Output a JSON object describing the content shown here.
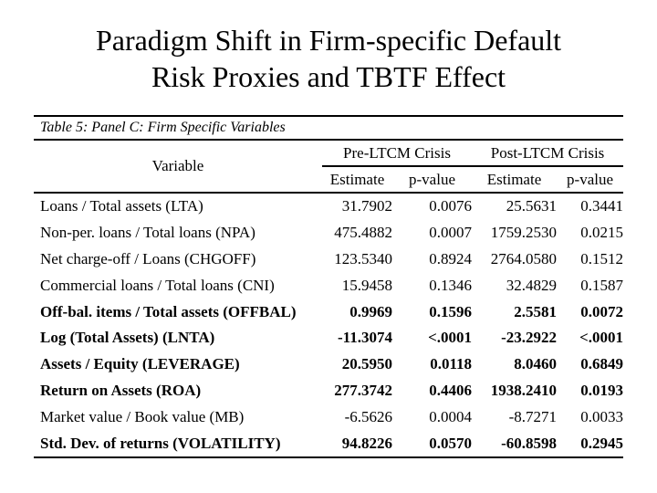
{
  "slide": {
    "title_line1": "Paradigm Shift in Firm-specific Default",
    "title_line2": "Risk Proxies and TBTF Effect",
    "background_color": "#ffffff",
    "text_color": "#000000"
  },
  "table": {
    "caption": "Table 5: Panel C: Firm Specific Variables",
    "columns": {
      "variable": "Variable",
      "group_pre": "Pre-LTCM Crisis",
      "group_post": "Post-LTCM Crisis"
    },
    "subheaders": [
      "Estimate",
      "p-value",
      "Estimate",
      "p-value"
    ],
    "rows": [
      {
        "cells": [
          "Loans / Total assets (LTA)",
          "31.7902",
          "0.0076",
          "25.5631",
          "0.3441"
        ],
        "bold": false
      },
      {
        "cells": [
          "Non-per. loans / Total loans (NPA)",
          "475.4882",
          "0.0007",
          "1759.2530",
          "0.0215"
        ],
        "bold": false
      },
      {
        "cells": [
          "Net charge-off / Loans (CHGOFF)",
          "123.5340",
          "0.8924",
          "2764.0580",
          "0.1512"
        ],
        "bold": false
      },
      {
        "cells": [
          "Commercial loans / Total loans (CNI)",
          "15.9458",
          "0.1346",
          "32.4829",
          "0.1587"
        ],
        "bold": false
      },
      {
        "cells": [
          "Off-bal. items / Total assets (OFFBAL)",
          "0.9969",
          "0.1596",
          "2.5581",
          "0.0072"
        ],
        "bold": true
      },
      {
        "cells": [
          "Log (Total Assets) (LNTA)",
          "-11.3074",
          "<.0001",
          "-23.2922",
          "<.0001"
        ],
        "bold": true
      },
      {
        "cells": [
          "Assets / Equity (LEVERAGE)",
          "20.5950",
          "0.0118",
          "8.0460",
          "0.6849"
        ],
        "bold": true
      },
      {
        "cells": [
          "Return on Assets (ROA)",
          "277.3742",
          "0.4406",
          "1938.2410",
          "0.0193"
        ],
        "bold": true
      },
      {
        "cells": [
          "Market value / Book value (MB)",
          "-6.5626",
          "0.0004",
          "-8.7271",
          "0.0033"
        ],
        "bold": false
      },
      {
        "cells": [
          "Std. Dev. of returns (VOLATILITY)",
          "94.8226",
          "0.0570",
          "-60.8598",
          "0.2945"
        ],
        "bold": true
      }
    ]
  },
  "chart_data": {
    "type": "table",
    "title": "Table 5: Panel C: Firm Specific Variables",
    "column_groups": [
      "Pre-LTCM Crisis",
      "Post-LTCM Crisis"
    ],
    "columns": [
      "Variable",
      "Pre Estimate",
      "Pre p-value",
      "Post Estimate",
      "Post p-value"
    ],
    "rows": [
      [
        "Loans / Total assets (LTA)",
        31.7902,
        0.0076,
        25.5631,
        0.3441
      ],
      [
        "Non-per. loans / Total loans (NPA)",
        475.4882,
        0.0007,
        1759.253,
        0.0215
      ],
      [
        "Net charge-off / Loans (CHGOFF)",
        123.534,
        0.8924,
        2764.058,
        0.1512
      ],
      [
        "Commercial loans / Total loans (CNI)",
        15.9458,
        0.1346,
        32.4829,
        0.1587
      ],
      [
        "Off-bal. items / Total assets (OFFBAL)",
        0.9969,
        0.1596,
        2.5581,
        0.0072
      ],
      [
        "Log (Total Assets) (LNTA)",
        -11.3074,
        "<.0001",
        -23.2922,
        "<.0001"
      ],
      [
        "Assets / Equity (LEVERAGE)",
        20.595,
        0.0118,
        8.046,
        0.6849
      ],
      [
        "Return on Assets (ROA)",
        277.3742,
        0.4406,
        1938.241,
        0.0193
      ],
      [
        "Market value / Book value (MB)",
        -6.5626,
        0.0004,
        -8.7271,
        0.0033
      ],
      [
        "Std. Dev. of returns (VOLATILITY)",
        94.8226,
        0.057,
        -60.8598,
        0.2945
      ]
    ]
  }
}
